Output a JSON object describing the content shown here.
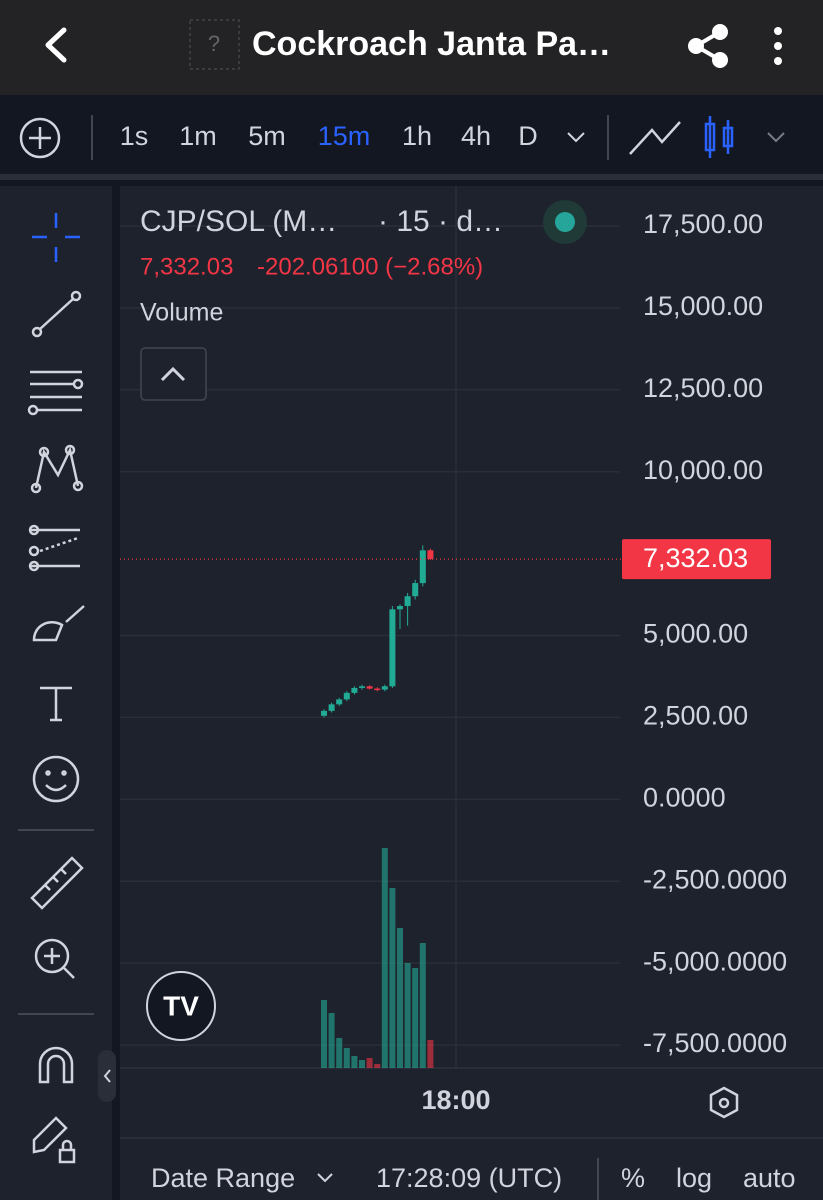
{
  "header": {
    "title": "Cockroach Janta Pa…"
  },
  "toolbar": {
    "intervals": [
      "1s",
      "1m",
      "5m",
      "15m",
      "1h",
      "4h",
      "D"
    ],
    "selected": 3
  },
  "legend": {
    "symbol": "CJP/SOL (M…",
    "interval": "· 15 · d…",
    "price": "7,332.03",
    "change": "-202.06100 (−2.68%)",
    "volume_label": "Volume"
  },
  "chart_data": {
    "type": "candlestick",
    "ylim": [
      -8200,
      18720
    ],
    "yticks": [
      {
        "value": 17500,
        "label": "17,500.00"
      },
      {
        "value": 15000,
        "label": "15,000.00"
      },
      {
        "value": 12500,
        "label": "12,500.00"
      },
      {
        "value": 10000,
        "label": "10,000.00"
      },
      {
        "value": 5000,
        "label": "5,000.00"
      },
      {
        "value": 2500,
        "label": "2,500.00"
      },
      {
        "value": 0,
        "label": "0.0000"
      },
      {
        "value": -2500,
        "label": "-2,500.0000"
      },
      {
        "value": -5000,
        "label": "-5,000.0000"
      },
      {
        "value": -7500,
        "label": "-7,500.0000"
      }
    ],
    "last_price": {
      "value": 7332.03,
      "label": "7,332.03"
    },
    "x_label": "18:00",
    "up_color": "#22ab94",
    "down_color": "#f23645",
    "open": [
      2550,
      2700,
      2900,
      3050,
      3250,
      3400,
      3450,
      3380,
      3350,
      3450,
      5800,
      5900,
      6200,
      6600,
      7600
    ],
    "high": [
      2750,
      2950,
      3100,
      3300,
      3450,
      3500,
      3480,
      3420,
      3500,
      5900,
      5950,
      6300,
      6700,
      7750,
      7650
    ],
    "low": [
      2500,
      2650,
      2850,
      3000,
      3200,
      3350,
      3350,
      3300,
      3300,
      3400,
      5200,
      5300,
      6100,
      6500,
      7300
    ],
    "close": [
      2700,
      2900,
      3050,
      3250,
      3400,
      3450,
      3380,
      3350,
      3450,
      5800,
      5900,
      6200,
      6600,
      7600,
      7332.03
    ],
    "volume": [
      68,
      55,
      30,
      20,
      12,
      8,
      10,
      4,
      220,
      180,
      140,
      105,
      100,
      125,
      28
    ]
  },
  "footer": {
    "date_range": "Date Range",
    "time": "17:28:09 (UTC)",
    "options": [
      "%",
      "log",
      "auto"
    ]
  }
}
